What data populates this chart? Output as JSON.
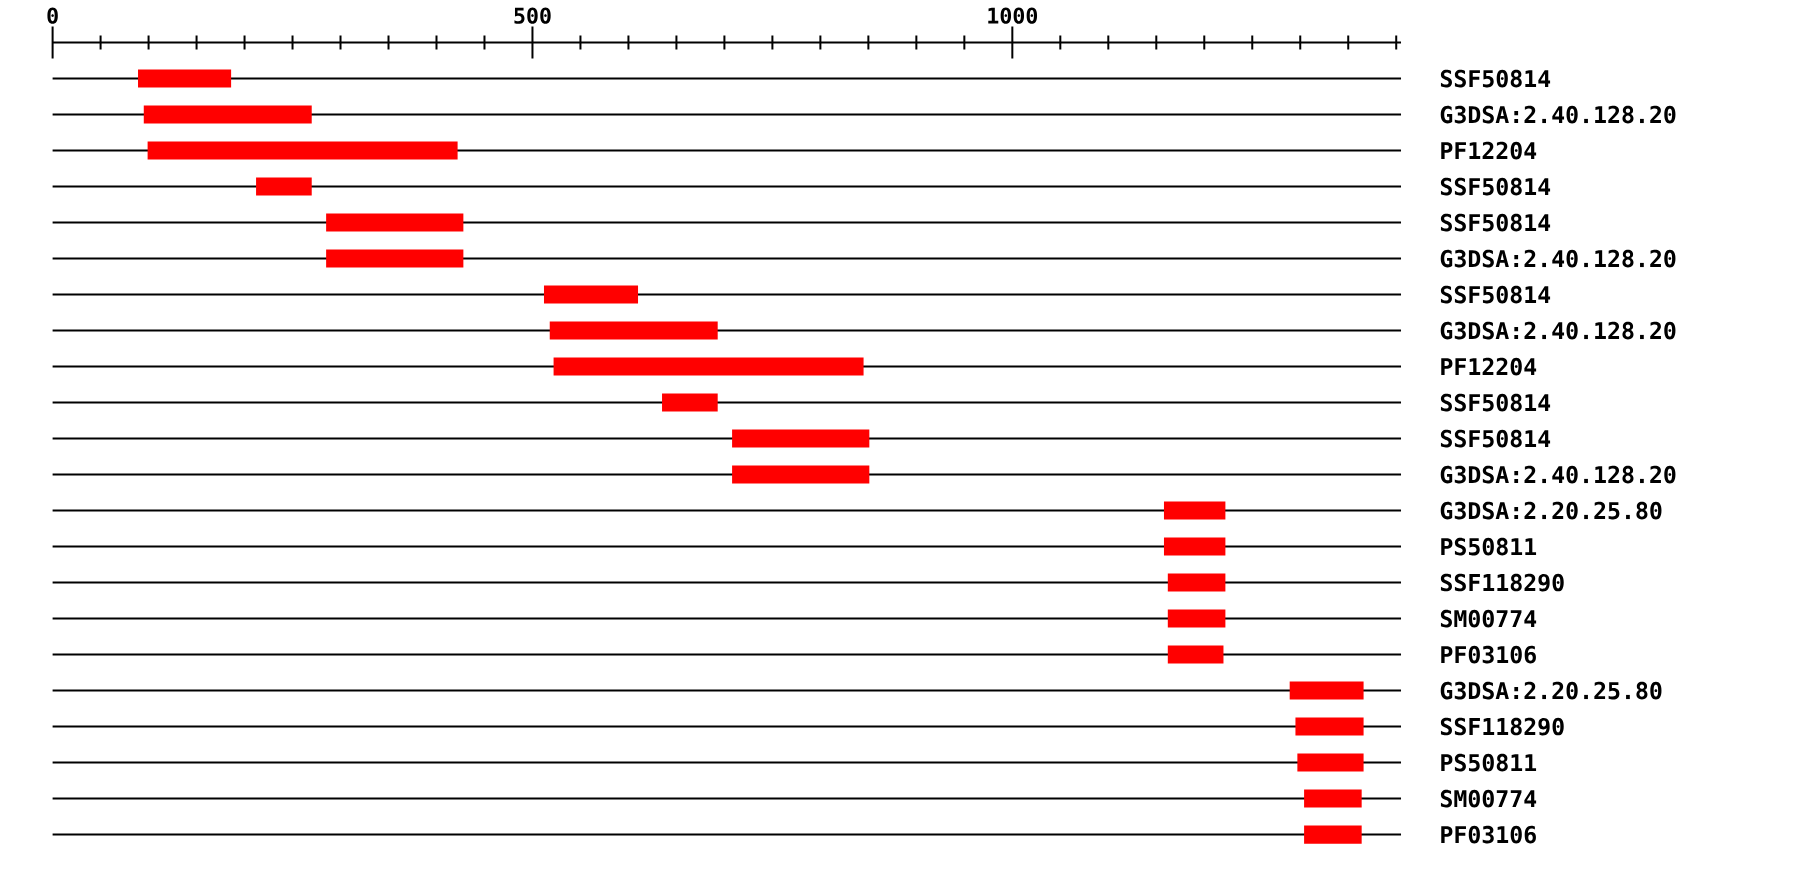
{
  "chart_data": {
    "type": "bar",
    "orientation": "horizontal",
    "categories": [
      "SSF50814",
      "G3DSA:2.40.128.20",
      "PF12204",
      "SSF50814",
      "SSF50814",
      "G3DSA:2.40.128.20",
      "SSF50814",
      "G3DSA:2.40.128.20",
      "PF12204",
      "SSF50814",
      "SSF50814",
      "G3DSA:2.40.128.20",
      "G3DSA:2.20.25.80",
      "PS50811",
      "SSF118290",
      "SM00774",
      "PF03106",
      "G3DSA:2.20.25.80",
      "SSF118290",
      "PS50811",
      "SM00774",
      "PF03106"
    ],
    "base": [
      89,
      95,
      99,
      212,
      285,
      285,
      512,
      518,
      522,
      635,
      708,
      708,
      1158,
      1158,
      1162,
      1162,
      1162,
      1289,
      1295,
      1297,
      1304,
      1304
    ],
    "values": [
      97,
      175,
      323,
      58,
      143,
      143,
      98,
      175,
      323,
      58,
      143,
      143,
      64,
      64,
      60,
      60,
      58,
      77,
      71,
      69,
      60,
      60
    ],
    "color": "#ff0000",
    "xlim": [
      0,
      1405
    ],
    "xticks": [
      0,
      {
        "value": 50,
        "label": null
      },
      {
        "value": 100,
        "label": null
      },
      {
        "value": 150,
        "label": null
      },
      {
        "value": 200,
        "label": null
      },
      {
        "value": 250,
        "label": null
      },
      {
        "value": 300,
        "label": null
      },
      {
        "value": 350,
        "label": null
      },
      {
        "value": 400,
        "label": null
      },
      {
        "value": 450,
        "label": null
      },
      500,
      {
        "value": 550,
        "label": null
      },
      {
        "value": 600,
        "label": null
      },
      {
        "value": 650,
        "label": null
      },
      {
        "value": 700,
        "label": null
      },
      {
        "value": 750,
        "label": null
      },
      {
        "value": 800,
        "label": null
      },
      {
        "value": 850,
        "label": null
      },
      {
        "value": 900,
        "label": null
      },
      {
        "value": 950,
        "label": null
      },
      1000,
      {
        "value": 1050,
        "label": null
      },
      {
        "value": 1100,
        "label": null
      },
      {
        "value": 1150,
        "label": null
      },
      {
        "value": 1200,
        "label": null
      },
      {
        "value": 1250,
        "label": null
      },
      {
        "value": 1300,
        "label": null
      },
      {
        "value": 1350,
        "label": null
      },
      {
        "value": 1400,
        "label": null
      }
    ],
    "grid": "y"
  }
}
